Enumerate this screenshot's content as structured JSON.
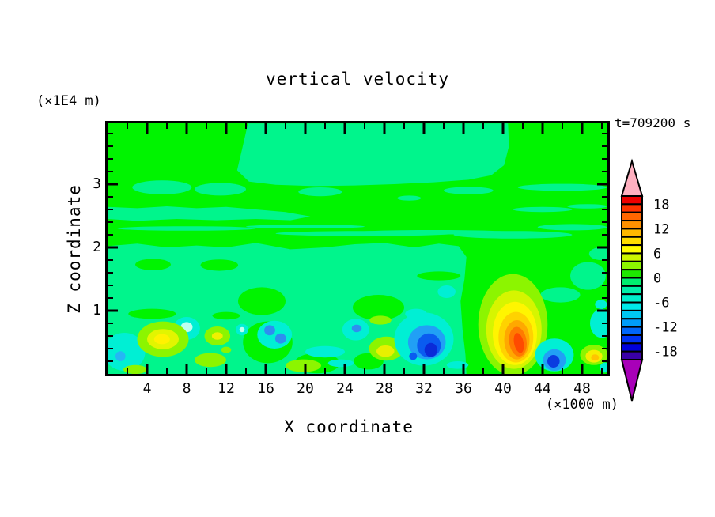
{
  "title": "vertical velocity",
  "time_stamp": "t=709200 s",
  "axes": {
    "x": {
      "label": "X coordinate",
      "unit": "(×1000 m)",
      "range": [
        0,
        50.56
      ],
      "major_ticks": [
        4,
        8,
        12,
        16,
        20,
        24,
        28,
        32,
        36,
        40,
        44,
        48
      ],
      "minor_ticks": [
        2,
        6,
        10,
        14,
        18,
        22,
        26,
        30,
        34,
        38,
        42,
        46,
        50
      ]
    },
    "z": {
      "label": "Z coordinate",
      "unit": "(×1E4 m)",
      "range": [
        0,
        3.96
      ],
      "major_ticks": [
        1,
        2,
        3
      ],
      "minor_ticks": [
        0.2,
        0.4,
        0.6,
        0.8,
        1.2,
        1.4,
        1.6,
        1.8,
        2.2,
        2.4,
        2.6,
        2.8,
        3.2,
        3.4,
        3.6,
        3.8
      ]
    }
  },
  "colorbar": {
    "labels": [
      18,
      12,
      6,
      0,
      -6,
      -12,
      -18
    ],
    "value_min": -20,
    "value_max": 20,
    "interval": 2,
    "over_color": "#FFB0C0",
    "under_color": "#A800B8",
    "colors_top_to_bottom": [
      "#EE0000",
      "#FF3300",
      "#FF6600",
      "#FF9100",
      "#FFB800",
      "#FFDC00",
      "#FFFC00",
      "#CCF500",
      "#8CF500",
      "#1EE800",
      "#00EE6E",
      "#00EFA8",
      "#00EFCC",
      "#00E9E9",
      "#00C8F2",
      "#009CFA",
      "#0066FA",
      "#0033F5",
      "#0000DC",
      "#3A00A8"
    ]
  },
  "chart_data": {
    "type": "heatmap",
    "variable": "vertical velocity",
    "title": "vertical velocity",
    "xlabel": "X coordinate (×1000 m)",
    "ylabel": "Z coordinate (×1E4 m)",
    "x_range": [
      0,
      50.56
    ],
    "z_range": [
      0,
      3.96
    ],
    "contour_interval": 2,
    "background_value_color": "#00F400",
    "field_shapes": [
      {
        "t": "rect",
        "f": "#00F400"
      },
      {
        "t": "p",
        "f": "#00F58C",
        "pts": [
          [
            14.2,
            3.96
          ],
          [
            13.6,
            3.55
          ],
          [
            13.1,
            3.22
          ],
          [
            14.3,
            3.04
          ],
          [
            17,
            2.99
          ],
          [
            21,
            2.97
          ],
          [
            25,
            2.98
          ],
          [
            29,
            3.0
          ],
          [
            33,
            3.03
          ],
          [
            36.5,
            3.07
          ],
          [
            38.8,
            3.14
          ],
          [
            40.1,
            3.3
          ],
          [
            40.6,
            3.6
          ],
          [
            40.5,
            3.96
          ]
        ]
      },
      {
        "t": "e",
        "f": "#00F58C",
        "c": [
          5.5,
          2.95
        ],
        "r": [
          3.0,
          0.11
        ]
      },
      {
        "t": "e",
        "f": "#00F58C",
        "c": [
          11.4,
          2.92
        ],
        "r": [
          2.6,
          0.1
        ]
      },
      {
        "t": "e",
        "f": "#00F58C",
        "c": [
          21.5,
          2.88
        ],
        "r": [
          2.2,
          0.07
        ]
      },
      {
        "t": "e",
        "f": "#00F58C",
        "c": [
          36.5,
          2.9
        ],
        "r": [
          2.5,
          0.06
        ]
      },
      {
        "t": "e",
        "f": "#00F58C",
        "c": [
          30.5,
          2.78
        ],
        "r": [
          1.2,
          0.04
        ]
      },
      {
        "t": "e",
        "f": "#00F58C",
        "c": [
          46,
          2.95
        ],
        "r": [
          4.5,
          0.055
        ]
      },
      {
        "t": "p",
        "f": "#00F58C",
        "pts": [
          [
            0,
            2.64
          ],
          [
            3,
            2.62
          ],
          [
            6,
            2.65
          ],
          [
            9,
            2.62
          ],
          [
            12,
            2.64
          ],
          [
            15,
            2.6
          ],
          [
            18,
            2.56
          ],
          [
            20.5,
            2.49
          ],
          [
            18.5,
            2.43
          ],
          [
            15,
            2.45
          ],
          [
            11,
            2.43
          ],
          [
            7,
            2.45
          ],
          [
            3,
            2.42
          ],
          [
            0,
            2.45
          ]
        ]
      },
      {
        "t": "e",
        "f": "#00F58C",
        "c": [
          8,
          2.3
        ],
        "r": [
          7,
          0.035
        ]
      },
      {
        "t": "e",
        "f": "#00F58C",
        "c": [
          20,
          2.33
        ],
        "r": [
          6,
          0.03
        ]
      },
      {
        "t": "e",
        "f": "#00F58C",
        "c": [
          26,
          2.22
        ],
        "r": [
          9,
          0.04
        ]
      },
      {
        "t": "e",
        "f": "#00F58C",
        "c": [
          33,
          2.24
        ],
        "r": [
          8,
          0.035
        ]
      },
      {
        "t": "e",
        "f": "#00F58C",
        "c": [
          41,
          2.2
        ],
        "r": [
          6,
          0.06
        ]
      },
      {
        "t": "e",
        "f": "#00F58C",
        "c": [
          47,
          2.32
        ],
        "r": [
          3.5,
          0.05
        ]
      },
      {
        "t": "e",
        "f": "#00F58C",
        "c": [
          44,
          2.6
        ],
        "r": [
          3,
          0.04
        ]
      },
      {
        "t": "e",
        "f": "#00F58C",
        "c": [
          48.5,
          2.65
        ],
        "r": [
          2,
          0.035
        ]
      },
      {
        "t": "p",
        "f": "#00F58C",
        "pts": [
          [
            0,
            2.02
          ],
          [
            3,
            2.06
          ],
          [
            6,
            2.0
          ],
          [
            9,
            2.03
          ],
          [
            12,
            2.0
          ],
          [
            15,
            2.07
          ],
          [
            18.5,
            1.97
          ],
          [
            22,
            2.0
          ],
          [
            25,
            2.05
          ],
          [
            28,
            2.07
          ],
          [
            31,
            2.0
          ],
          [
            33.5,
            2.06
          ],
          [
            35.5,
            2.02
          ],
          [
            36.3,
            1.85
          ],
          [
            36.1,
            1.5
          ],
          [
            35.7,
            1.15
          ],
          [
            35.9,
            0.7
          ],
          [
            36.2,
            0.3
          ],
          [
            36.3,
            0
          ],
          [
            0,
            0
          ]
        ]
      },
      {
        "t": "e",
        "f": "#00F58C",
        "c": [
          45.8,
          1.25
        ],
        "r": [
          2.0,
          0.12
        ]
      },
      {
        "t": "e",
        "f": "#00F58C",
        "c": [
          48.6,
          1.55
        ],
        "r": [
          1.8,
          0.22
        ]
      },
      {
        "t": "e",
        "f": "#00F58C",
        "c": [
          49.9,
          1.9
        ],
        "r": [
          1.2,
          0.1
        ]
      },
      {
        "t": "e",
        "f": "#00F400",
        "c": [
          4.6,
          1.73
        ],
        "r": [
          1.8,
          0.09
        ]
      },
      {
        "t": "e",
        "f": "#00F400",
        "c": [
          11.3,
          1.72
        ],
        "r": [
          1.9,
          0.09
        ]
      },
      {
        "t": "e",
        "f": "#00F400",
        "c": [
          15.6,
          1.15
        ],
        "r": [
          2.4,
          0.22
        ]
      },
      {
        "t": "e",
        "f": "#00F400",
        "c": [
          27.4,
          1.05
        ],
        "r": [
          2.6,
          0.2
        ]
      },
      {
        "t": "e",
        "f": "#00F400",
        "c": [
          16.2,
          0.5
        ],
        "r": [
          2.5,
          0.33
        ]
      },
      {
        "t": "e",
        "f": "#00F400",
        "c": [
          21.2,
          0.17
        ],
        "r": [
          2.3,
          0.16
        ]
      },
      {
        "t": "e",
        "f": "#00F400",
        "c": [
          26.4,
          0.2
        ],
        "r": [
          1.5,
          0.13
        ]
      },
      {
        "t": "e",
        "f": "#00F400",
        "c": [
          4.5,
          0.95
        ],
        "r": [
          2.4,
          0.08
        ]
      },
      {
        "t": "e",
        "f": "#00F400",
        "c": [
          12,
          0.92
        ],
        "r": [
          1.4,
          0.06
        ]
      },
      {
        "t": "e",
        "f": "#00F400",
        "c": [
          33.5,
          1.55
        ],
        "r": [
          2.2,
          0.07
        ]
      },
      {
        "t": "e",
        "f": "#00EFD4",
        "c": [
          1.7,
          0.35
        ],
        "r": [
          2.1,
          0.3
        ]
      },
      {
        "t": "e",
        "f": "#25B6F5",
        "c": [
          1.3,
          0.28
        ],
        "r": [
          0.5,
          0.08
        ]
      },
      {
        "t": "e",
        "f": "#00EFD4",
        "c": [
          8,
          0.72
        ],
        "r": [
          1.35,
          0.18
        ]
      },
      {
        "t": "e",
        "f": "#BFFFEF",
        "c": [
          8,
          0.74
        ],
        "r": [
          0.6,
          0.08
        ]
      },
      {
        "t": "e",
        "f": "#00EFD4",
        "c": [
          13.6,
          0.7
        ],
        "r": [
          0.62,
          0.09
        ]
      },
      {
        "t": "e",
        "f": "#BFFFEF",
        "c": [
          13.6,
          0.7
        ],
        "r": [
          0.26,
          0.04
        ]
      },
      {
        "t": "e",
        "f": "#00EFD4",
        "c": [
          16.9,
          0.62
        ],
        "r": [
          1.75,
          0.22
        ]
      },
      {
        "t": "e",
        "f": "#2E8EF0",
        "c": [
          16.4,
          0.69
        ],
        "r": [
          0.55,
          0.08
        ]
      },
      {
        "t": "e",
        "f": "#2E8EF0",
        "c": [
          17.5,
          0.56
        ],
        "r": [
          0.55,
          0.08
        ]
      },
      {
        "t": "e",
        "f": "#00EFD4",
        "c": [
          22,
          0.35
        ],
        "r": [
          2.0,
          0.09
        ]
      },
      {
        "t": "e",
        "f": "#00EFD4",
        "c": [
          23.6,
          0.17
        ],
        "r": [
          1.3,
          0.06
        ]
      },
      {
        "t": "e",
        "f": "#00EFD4",
        "c": [
          25.1,
          0.7
        ],
        "r": [
          1.35,
          0.17
        ]
      },
      {
        "t": "e",
        "f": "#2E8EF0",
        "c": [
          25.2,
          0.72
        ],
        "r": [
          0.5,
          0.06
        ]
      },
      {
        "t": "e",
        "f": "#8CF500",
        "c": [
          5.6,
          0.55
        ],
        "r": [
          2.6,
          0.28
        ]
      },
      {
        "t": "e",
        "f": "#E2F500",
        "c": [
          5.6,
          0.55
        ],
        "r": [
          1.6,
          0.16
        ]
      },
      {
        "t": "e",
        "f": "#FFF200",
        "c": [
          5.5,
          0.55
        ],
        "r": [
          0.8,
          0.08
        ]
      },
      {
        "t": "e",
        "f": "#8CF500",
        "c": [
          11.1,
          0.6
        ],
        "r": [
          1.3,
          0.15
        ]
      },
      {
        "t": "e",
        "f": "#F0F000",
        "c": [
          11.1,
          0.6
        ],
        "r": [
          0.55,
          0.06
        ]
      },
      {
        "t": "e",
        "f": "#8CF500",
        "c": [
          10.4,
          0.22
        ],
        "r": [
          1.6,
          0.11
        ]
      },
      {
        "t": "e",
        "f": "#8CF500",
        "c": [
          12,
          0.38
        ],
        "r": [
          0.5,
          0.05
        ]
      },
      {
        "t": "e",
        "f": "#8CF500",
        "c": [
          19.8,
          0.13
        ],
        "r": [
          1.8,
          0.1
        ]
      },
      {
        "t": "e",
        "f": "#8CF500",
        "c": [
          2.8,
          0.07
        ],
        "r": [
          1.2,
          0.07
        ]
      },
      {
        "t": "e",
        "f": "#8CF500",
        "c": [
          28.2,
          0.4
        ],
        "r": [
          1.75,
          0.19
        ]
      },
      {
        "t": "e",
        "f": "#E8F000",
        "c": [
          28.1,
          0.36
        ],
        "r": [
          0.9,
          0.09
        ]
      },
      {
        "t": "e",
        "f": "#8CF500",
        "c": [
          27.6,
          0.85
        ],
        "r": [
          1.1,
          0.07
        ]
      },
      {
        "t": "e",
        "f": "#00EFD4",
        "c": [
          32,
          0.55
        ],
        "r": [
          3.0,
          0.42
        ]
      },
      {
        "t": "e",
        "f": "#00EFD4",
        "c": [
          31.2,
          0.95
        ],
        "r": [
          1.1,
          0.08
        ]
      },
      {
        "t": "e",
        "f": "#21A0F5",
        "c": [
          32.3,
          0.5
        ],
        "r": [
          1.9,
          0.27
        ]
      },
      {
        "t": "e",
        "f": "#0A5BF0",
        "c": [
          32.5,
          0.45
        ],
        "r": [
          1.2,
          0.19
        ]
      },
      {
        "t": "e",
        "f": "#0A2BD8",
        "c": [
          32.7,
          0.38
        ],
        "r": [
          0.65,
          0.11
        ]
      },
      {
        "t": "e",
        "f": "#0A5BF0",
        "c": [
          30.9,
          0.28
        ],
        "r": [
          0.4,
          0.06
        ]
      },
      {
        "t": "e",
        "f": "#00EFD4",
        "c": [
          35.4,
          0.14
        ],
        "r": [
          1.1,
          0.06
        ]
      },
      {
        "t": "e",
        "f": "#00EFD4",
        "c": [
          34.3,
          1.3
        ],
        "r": [
          0.9,
          0.1
        ]
      },
      {
        "t": "e",
        "f": "#8CF500",
        "c": [
          41.0,
          0.78
        ],
        "r": [
          3.5,
          0.8
        ]
      },
      {
        "t": "e",
        "f": "#D6F500",
        "c": [
          41.1,
          0.7
        ],
        "r": [
          2.8,
          0.62
        ]
      },
      {
        "t": "e",
        "f": "#FFF500",
        "c": [
          41.2,
          0.64
        ],
        "r": [
          2.24,
          0.5
        ]
      },
      {
        "t": "e",
        "f": "#FFD200",
        "c": [
          41.3,
          0.58
        ],
        "r": [
          1.76,
          0.4
        ]
      },
      {
        "t": "e",
        "f": "#FFA800",
        "c": [
          41.4,
          0.54
        ],
        "r": [
          1.28,
          0.31
        ]
      },
      {
        "t": "e",
        "f": "#FF7A00",
        "c": [
          41.5,
          0.51
        ],
        "r": [
          0.88,
          0.235
        ],
        "rot": -8
      },
      {
        "t": "e",
        "f": "#FF4A00",
        "c": [
          41.6,
          0.49
        ],
        "r": [
          0.48,
          0.16
        ],
        "rot": -12
      },
      {
        "t": "e",
        "f": "#00EFD4",
        "c": [
          45.2,
          0.3
        ],
        "r": [
          1.95,
          0.26
        ]
      },
      {
        "t": "e",
        "f": "#21A0F5",
        "c": [
          45.2,
          0.22
        ],
        "r": [
          1.15,
          0.17
        ]
      },
      {
        "t": "e",
        "f": "#0A3BE0",
        "c": [
          45.1,
          0.2
        ],
        "r": [
          0.62,
          0.1
        ]
      },
      {
        "t": "e",
        "f": "#8CF500",
        "c": [
          49.2,
          0.3
        ],
        "r": [
          1.4,
          0.16
        ]
      },
      {
        "t": "e",
        "f": "#F5EE00",
        "c": [
          49.2,
          0.28
        ],
        "r": [
          0.85,
          0.1
        ]
      },
      {
        "t": "e",
        "f": "#FFC400",
        "c": [
          49.3,
          0.26
        ],
        "r": [
          0.4,
          0.05
        ]
      },
      {
        "t": "e",
        "f": "#00EFD4",
        "c": [
          50,
          0.8
        ],
        "r": [
          1.2,
          0.23
        ]
      },
      {
        "t": "e",
        "f": "#00EFD4",
        "c": [
          49.9,
          1.1
        ],
        "r": [
          0.6,
          0.07
        ]
      },
      {
        "t": "e",
        "f": "#00EFD4",
        "c": [
          50.3,
          0.1
        ],
        "r": [
          0.5,
          0.08
        ]
      }
    ]
  }
}
